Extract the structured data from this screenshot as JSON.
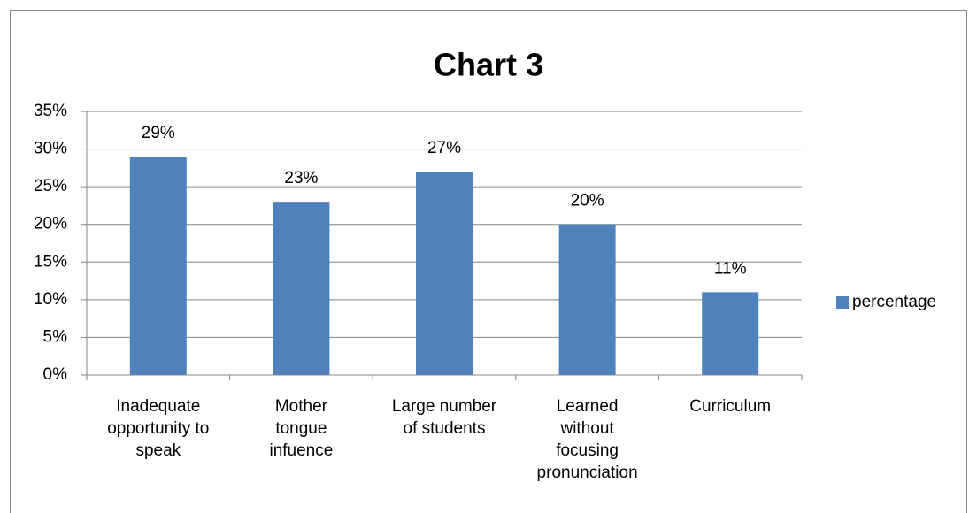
{
  "chart_data": {
    "type": "bar",
    "title": "Chart 3",
    "categories": [
      "Inadequate\nopportunity to\nspeak",
      "Mother\ntongue\ninfuence",
      "Large number\nof students",
      "Learned\nwithout\nfocusing\npronunciation",
      "Curriculum"
    ],
    "series": [
      {
        "name": "percentage",
        "color": "#4f81bd",
        "values": [
          29,
          23,
          27,
          20,
          11
        ],
        "value_labels": [
          "29%",
          "23%",
          "27%",
          "20%",
          "11%"
        ]
      }
    ],
    "ylim": [
      0,
      35
    ],
    "yticks": [
      {
        "value": 0,
        "label": "0%"
      },
      {
        "value": 5,
        "label": "5%"
      },
      {
        "value": 10,
        "label": "10%"
      },
      {
        "value": 15,
        "label": "15%"
      },
      {
        "value": 20,
        "label": "20%"
      },
      {
        "value": 25,
        "label": "25%"
      },
      {
        "value": 30,
        "label": "30%"
      },
      {
        "value": 35,
        "label": "35%"
      }
    ],
    "grid": true,
    "legend": "right"
  }
}
